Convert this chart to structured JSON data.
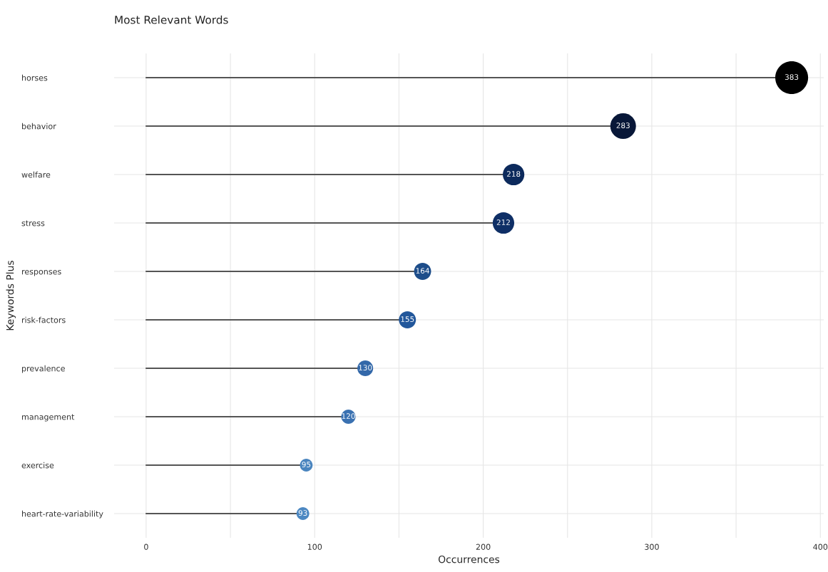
{
  "chart_data": {
    "type": "lollipop",
    "title": "Most Relevant Words",
    "xlabel": "Occurrences",
    "ylabel": "Keywords Plus",
    "orientation": "horizontal",
    "categories": [
      "horses",
      "behavior",
      "welfare",
      "stress",
      "responses",
      "risk-factors",
      "prevalence",
      "management",
      "exercise",
      "heart-rate-variability"
    ],
    "values": [
      383,
      283,
      218,
      212,
      164,
      155,
      130,
      120,
      95,
      93
    ],
    "colors": [
      "#000000",
      "#081738",
      "#0c2a5c",
      "#0f2f66",
      "#1d4d8a",
      "#22579b",
      "#3368a9",
      "#3a71b1",
      "#4a85bf",
      "#4c88c2"
    ],
    "sizes": [
      1,
      0.61,
      0.43,
      0.43,
      0.27,
      0.27,
      0.23,
      0.19,
      0.15,
      0.15
    ],
    "xlim": [
      -19,
      402
    ],
    "xticks": [
      0,
      {
        "value": 50,
        "label": null
      },
      100,
      {
        "value": 150,
        "label": null
      },
      200,
      {
        "value": 250,
        "label": null
      },
      300,
      {
        "value": 350,
        "label": null
      },
      400
    ],
    "grid": true,
    "marker": "circle",
    "data_labels": true
  }
}
